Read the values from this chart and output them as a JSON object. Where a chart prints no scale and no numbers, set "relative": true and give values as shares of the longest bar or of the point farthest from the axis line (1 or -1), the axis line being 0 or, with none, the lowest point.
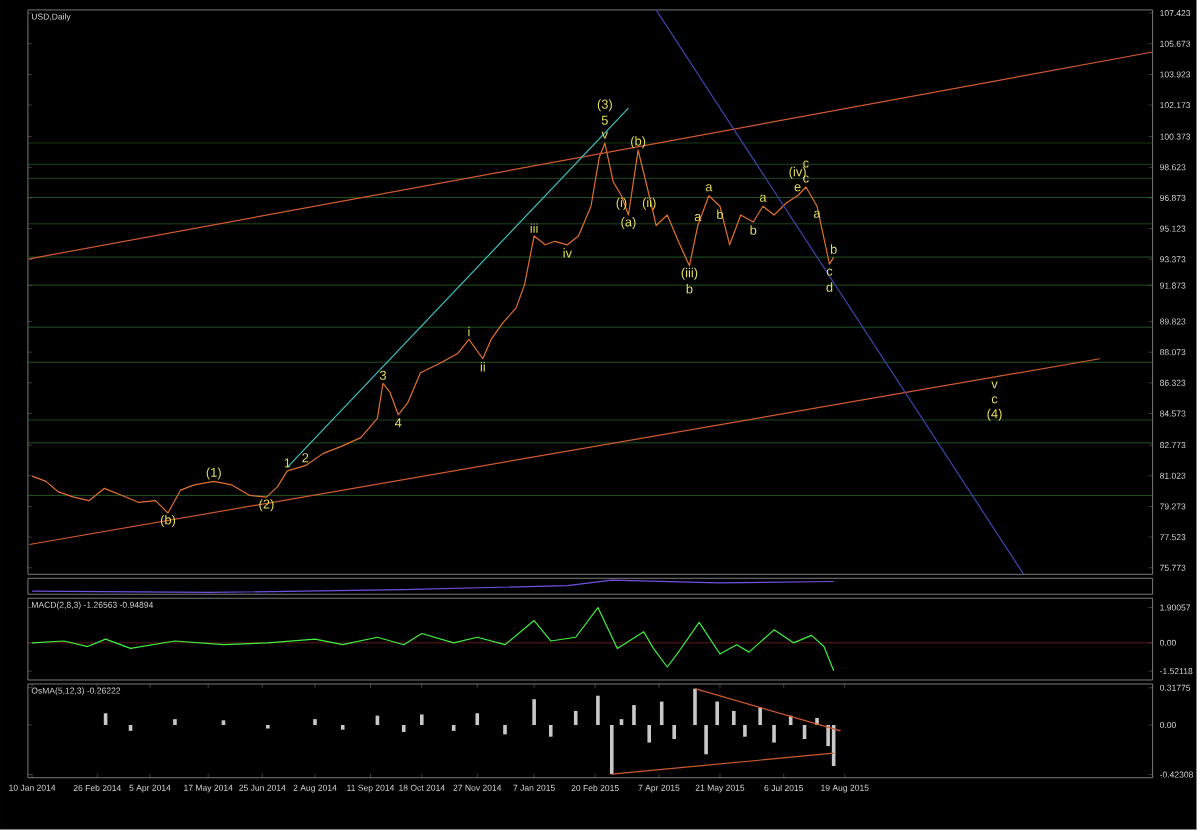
{
  "chart_data": [
    {
      "type": "line",
      "title": "USD,Daily",
      "xlim": [
        "2014-01-07",
        "2016-03-28"
      ],
      "ylim": [
        75.4,
        107.6
      ],
      "tick_labels": "y",
      "yticks": [
        107.423,
        105.673,
        103.923,
        102.173,
        100.373,
        98.623,
        96.873,
        95.123,
        93.373,
        91.873,
        89.823,
        88.073,
        86.323,
        84.573,
        82.773,
        81.023,
        79.273,
        77.523,
        75.773
      ],
      "series": [
        {
          "color": "#e07030",
          "x": [
            "2014-01-10",
            "2014-01-20",
            "2014-01-29",
            "2014-02-09",
            "2014-02-20",
            "2014-03-03",
            "2014-03-16",
            "2014-03-28",
            "2014-04-09",
            "2014-04-18",
            "2014-04-27",
            "2014-05-07",
            "2014-05-21",
            "2014-06-03",
            "2014-06-16",
            "2014-06-28",
            "2014-07-06",
            "2014-07-13",
            "2014-07-26",
            "2014-08-08",
            "2014-08-21",
            "2014-09-04",
            "2014-09-16",
            "2014-09-20",
            "2014-09-25",
            "2014-10-01",
            "2014-10-08",
            "2014-10-17",
            "2014-10-30",
            "2014-11-13",
            "2014-11-21",
            "2014-12-01",
            "2014-12-07",
            "2014-12-15",
            "2014-12-25",
            "2014-12-31",
            "2015-01-07",
            "2015-01-15",
            "2015-01-22",
            "2015-01-31",
            "2015-02-08",
            "2015-02-17",
            "2015-02-23",
            "2015-02-27",
            "2015-03-05",
            "2015-03-11",
            "2015-03-16",
            "2015-03-23",
            "2015-03-31",
            "2015-04-05",
            "2015-04-13",
            "2015-04-21",
            "2015-04-29",
            "2015-05-05",
            "2015-05-13",
            "2015-05-21",
            "2015-05-28",
            "2015-06-05",
            "2015-06-14",
            "2015-06-21",
            "2015-06-29",
            "2015-07-08",
            "2015-07-16",
            "2015-07-22",
            "2015-07-30",
            "2015-08-08",
            "2015-08-11"
          ],
          "values": [
            81.0,
            80.7,
            80.1,
            79.8,
            79.6,
            80.3,
            79.9,
            79.5,
            79.6,
            78.9,
            80.2,
            80.5,
            80.7,
            80.5,
            79.9,
            79.8,
            80.4,
            81.3,
            81.6,
            82.3,
            82.7,
            83.2,
            84.3,
            86.3,
            85.8,
            84.5,
            85.2,
            86.9,
            87.4,
            88.0,
            88.8,
            87.7,
            88.8,
            89.7,
            90.6,
            91.9,
            94.7,
            94.2,
            94.4,
            94.2,
            94.7,
            96.4,
            99.2,
            100.0,
            97.8,
            97.0,
            95.9,
            99.6,
            97.0,
            95.3,
            95.9,
            94.4,
            93.0,
            95.3,
            97.0,
            96.4,
            94.2,
            95.9,
            95.5,
            96.4,
            95.9,
            96.6,
            97.0,
            97.5,
            96.4,
            93.1,
            93.5
          ]
        },
        {
          "type": "line",
          "color": "#d05a30",
          "x": [
            "2014-01-08",
            "2016-03-28"
          ],
          "values": [
            93.4,
            105.2
          ]
        },
        {
          "type": "line",
          "color": "#d05a30",
          "x": [
            "2014-01-08",
            "2016-02-19"
          ],
          "values": [
            77.1,
            87.7
          ]
        },
        {
          "type": "line",
          "color": "#40c0c0",
          "x": [
            "2014-07-13",
            "2015-03-16"
          ],
          "values": [
            81.5,
            102.0
          ]
        },
        {
          "type": "line",
          "color": "#3a48b0",
          "x": [
            "2015-04-05",
            "2015-12-26"
          ],
          "values": [
            107.6,
            75.4
          ]
        }
      ],
      "ref_lines": [
        {
          "axis": "y",
          "value": 100.0,
          "color": "#2a6a2a"
        },
        {
          "axis": "y",
          "value": 98.8,
          "color": "#2a6a2a"
        },
        {
          "axis": "y",
          "value": 98.0,
          "color": "#2a6a2a"
        },
        {
          "axis": "y",
          "value": 96.9,
          "color": "#2a6a2a"
        },
        {
          "axis": "y",
          "value": 95.4,
          "color": "#2a6a2a"
        },
        {
          "axis": "y",
          "value": 93.5,
          "color": "#2a6a2a"
        },
        {
          "axis": "y",
          "value": 91.9,
          "color": "#2a6a2a"
        },
        {
          "axis": "y",
          "value": 89.5,
          "color": "#2a6a2a"
        },
        {
          "axis": "y",
          "value": 87.5,
          "color": "#2a6a2a"
        },
        {
          "axis": "y",
          "value": 84.2,
          "color": "#2a6a2a"
        },
        {
          "axis": "y",
          "value": 82.9,
          "color": "#2a6a2a"
        },
        {
          "axis": "y",
          "value": 79.9,
          "color": "#2a6a2a"
        }
      ],
      "annotations": [
        {
          "text": "(b)",
          "x": "2014-04-18",
          "y": 78.9
        },
        {
          "text": "(1)",
          "x": "2014-05-21",
          "y": 80.7
        },
        {
          "text": "(2)",
          "x": "2014-06-28",
          "y": 79.8
        },
        {
          "text": "1",
          "x": "2014-07-13",
          "y": 81.3
        },
        {
          "text": "2",
          "x": "2014-07-26",
          "y": 81.6
        },
        {
          "text": "3",
          "x": "2014-09-20",
          "y": 86.3
        },
        {
          "text": "4",
          "x": "2014-10-01",
          "y": 84.5
        },
        {
          "text": "i",
          "x": "2014-11-21",
          "y": 88.8
        },
        {
          "text": "ii",
          "x": "2014-12-01",
          "y": 87.7
        },
        {
          "text": "iii",
          "x": "2015-01-07",
          "y": 94.7
        },
        {
          "text": "iv",
          "x": "2015-01-31",
          "y": 94.2
        },
        {
          "text": "v",
          "x": "2015-02-27",
          "y": 100.0
        },
        {
          "text": "5",
          "x": "2015-02-27",
          "y": 100.0
        },
        {
          "text": "(3)",
          "x": "2015-02-27",
          "y": 100.0
        },
        {
          "text": "(a)",
          "x": "2015-03-16",
          "y": 95.9
        },
        {
          "text": "(i)",
          "x": "2015-03-11",
          "y": 97.0
        },
        {
          "text": "(b)",
          "x": "2015-03-23",
          "y": 99.6
        },
        {
          "text": "(ii)",
          "x": "2015-03-31",
          "y": 97.0
        },
        {
          "text": "(iii)",
          "x": "2015-04-29",
          "y": 93.0
        },
        {
          "text": "b",
          "x": "2015-04-29",
          "y": 93.0
        },
        {
          "text": "a",
          "x": "2015-05-13",
          "y": 97.0
        },
        {
          "text": "a",
          "x": "2015-05-05",
          "y": 95.3
        },
        {
          "text": "b",
          "x": "2015-05-21",
          "y": 96.4
        },
        {
          "text": "a",
          "x": "2015-06-21",
          "y": 96.4
        },
        {
          "text": "b",
          "x": "2015-06-14",
          "y": 95.5
        },
        {
          "text": "c",
          "x": "2015-07-22",
          "y": 97.5
        },
        {
          "text": "c",
          "x": "2015-07-22",
          "y": 97.5
        },
        {
          "text": "e",
          "x": "2015-07-16",
          "y": 97.0
        },
        {
          "text": "(iv)",
          "x": "2015-07-16",
          "y": 97.0
        },
        {
          "text": "a",
          "x": "2015-07-30",
          "y": 96.4
        },
        {
          "text": "b",
          "x": "2015-08-11",
          "y": 93.5
        },
        {
          "text": "c",
          "x": "2015-08-08",
          "y": 93.1
        },
        {
          "text": "d",
          "x": "2015-08-08",
          "y": 93.1
        },
        {
          "text": "v",
          "x": "2015-12-05",
          "y": 86.66
        },
        {
          "text": "c",
          "x": "2015-12-05",
          "y": 86.66
        },
        {
          "text": "(4)",
          "x": "2015-12-05",
          "y": 86.66
        }
      ]
    },
    {
      "type": "line",
      "relative": true,
      "xlim": [
        "2014-01-07",
        "2016-03-28"
      ],
      "tick_labels": false,
      "series": [
        {
          "color": "#7050e0",
          "x": [
            "2014-01-10",
            "2014-05-18",
            "2014-10-04",
            "2015-01-31",
            "2015-03-04",
            "2015-05-20",
            "2015-08-11"
          ],
          "values": [
            0.2,
            0.1,
            0.3,
            0.6,
            1,
            0.8,
            0.9
          ]
        }
      ]
    },
    {
      "type": "line",
      "title": "MACD(2,8,3) -1.26563 -0.94894",
      "xlim": [
        "2014-01-07",
        "2016-03-28"
      ],
      "ylim": [
        -2.0,
        2.4
      ],
      "tick_labels": "y",
      "yticks": [
        1.90057,
        {
          "value": 0,
          "label": "0.00"
        },
        -1.52118
      ],
      "ref_lines": [
        {
          "axis": "y",
          "value": 0,
          "color": "#802020"
        }
      ],
      "series": [
        {
          "color": "#40f040",
          "x": [
            "2014-01-10",
            "2014-02-02",
            "2014-02-19",
            "2014-03-04",
            "2014-03-22",
            "2014-04-23",
            "2014-05-28",
            "2014-06-29",
            "2014-08-02",
            "2014-08-22",
            "2014-09-16",
            "2014-10-05",
            "2014-10-18",
            "2014-11-10",
            "2014-11-27",
            "2014-12-17",
            "2015-01-07",
            "2015-01-19",
            "2015-02-06",
            "2015-02-22",
            "2015-03-08",
            "2015-03-27",
            "2015-04-03",
            "2015-04-13",
            "2015-04-22",
            "2015-05-06",
            "2015-05-21",
            "2015-06-02",
            "2015-06-11",
            "2015-06-29",
            "2015-07-13",
            "2015-07-26",
            "2015-08-04",
            "2015-08-11"
          ],
          "values": [
            0.0,
            0.1,
            -0.2,
            0.2,
            -0.3,
            0.1,
            -0.1,
            0.0,
            0.2,
            -0.1,
            0.3,
            -0.1,
            0.5,
            0.0,
            0.3,
            -0.1,
            1.2,
            0.1,
            0.3,
            1.9,
            -0.3,
            0.6,
            -0.3,
            -1.3,
            -0.4,
            1.1,
            -0.6,
            -0.1,
            -0.5,
            0.7,
            0.0,
            0.4,
            -0.2,
            -1.5
          ]
        }
      ]
    },
    {
      "type": "bar",
      "title": "OsMA(5,12,3) -0.26222",
      "xlim": [
        "2014-01-07",
        "2016-03-28"
      ],
      "ylim": [
        -0.45,
        0.35
      ],
      "yticks": [
        0.31775,
        {
          "value": 0,
          "label": "0.00"
        },
        -0.42308
      ],
      "xticks": [
        {
          "value": "2014-01-10",
          "label": "10 Jan 2014"
        },
        {
          "value": "2014-02-26",
          "label": "26 Feb 2014"
        },
        {
          "value": "2014-04-05",
          "label": "5 Apr 2014"
        },
        {
          "value": "2014-05-17",
          "label": "17 May 2014"
        },
        {
          "value": "2014-06-25",
          "label": "25 Jun 2014"
        },
        {
          "value": "2014-08-02",
          "label": "2 Aug 2014"
        },
        {
          "value": "2014-09-11",
          "label": "11 Sep 2014"
        },
        {
          "value": "2014-10-18",
          "label": "18 Oct 2014"
        },
        {
          "value": "2014-11-27",
          "label": "27 Nov 2014"
        },
        {
          "value": "2015-01-07",
          "label": "7 Jan 2015"
        },
        {
          "value": "2015-02-20",
          "label": "20 Feb 2015"
        },
        {
          "value": "2015-04-07",
          "label": "7 Apr 2015"
        },
        {
          "value": "2015-05-21",
          "label": "21 May 2015"
        },
        {
          "value": "2015-07-06",
          "label": "6 Jul 2015"
        },
        {
          "value": "2015-08-19",
          "label": "19 Aug 2015"
        }
      ],
      "series": [
        {
          "color": "#c8c8c8",
          "x": [
            "2014-03-04",
            "2014-03-22",
            "2014-04-23",
            "2014-05-28",
            "2014-06-29",
            "2014-08-02",
            "2014-08-22",
            "2014-09-16",
            "2014-10-05",
            "2014-10-18",
            "2014-11-10",
            "2014-11-27",
            "2014-12-17",
            "2015-01-07",
            "2015-01-19",
            "2015-02-06",
            "2015-02-22",
            "2015-03-04",
            "2015-03-11",
            "2015-03-20",
            "2015-03-31",
            "2015-04-09",
            "2015-04-18",
            "2015-05-03",
            "2015-05-11",
            "2015-05-19",
            "2015-05-31",
            "2015-06-08",
            "2015-06-19",
            "2015-06-29",
            "2015-07-11",
            "2015-07-21",
            "2015-07-30",
            "2015-08-07",
            "2015-08-11"
          ],
          "values": [
            0.1,
            -0.05,
            0.05,
            0.04,
            -0.03,
            0.05,
            -0.04,
            0.08,
            -0.06,
            0.09,
            -0.05,
            0.1,
            -0.08,
            0.22,
            -0.1,
            0.12,
            0.25,
            -0.42,
            0.05,
            0.17,
            -0.15,
            0.2,
            -0.12,
            0.31,
            -0.25,
            0.2,
            0.12,
            -0.1,
            0.15,
            -0.15,
            0.08,
            -0.12,
            0.06,
            -0.18,
            -0.35
          ]
        },
        {
          "type": "line",
          "color": "#d05a30",
          "x": [
            "2015-05-03",
            "2015-08-16"
          ],
          "values": [
            0.31,
            -0.05
          ]
        },
        {
          "type": "line",
          "color": "#d05a30",
          "x": [
            "2015-03-04",
            "2015-08-11"
          ],
          "values": [
            -0.42,
            -0.24
          ]
        }
      ]
    }
  ]
}
